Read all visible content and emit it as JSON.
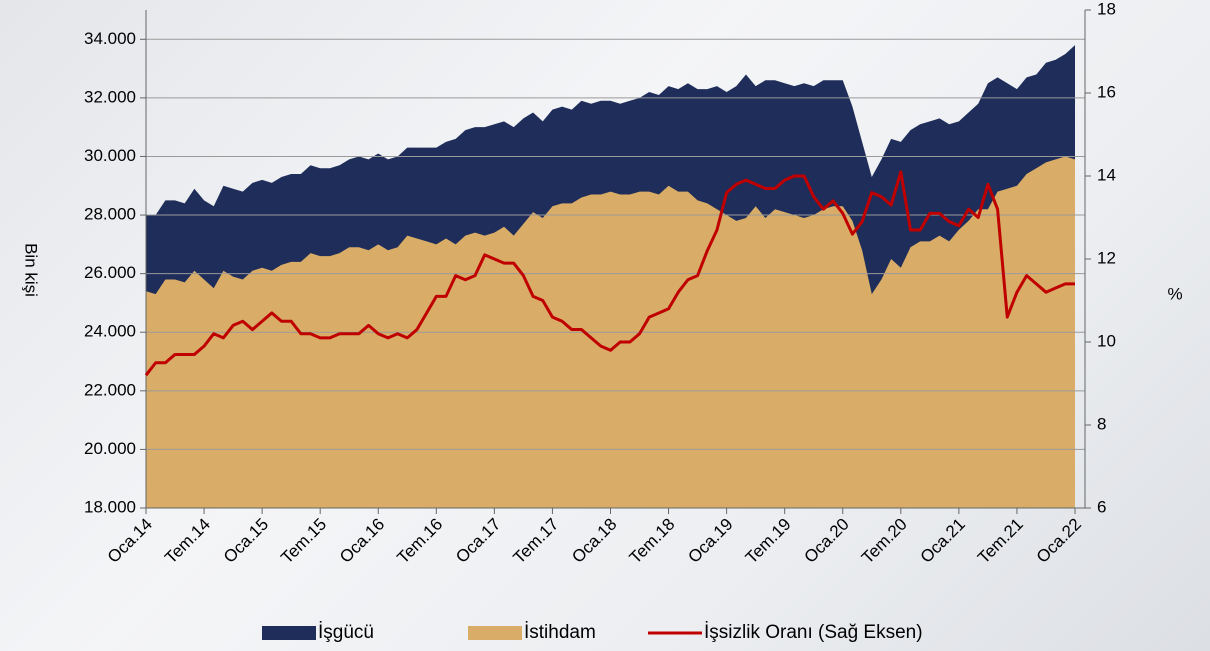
{
  "chart_data": {
    "type": "area-line",
    "categories": [
      "Oca.14",
      null,
      null,
      null,
      null,
      null,
      "Tem.14",
      null,
      null,
      null,
      null,
      null,
      "Oca.15",
      null,
      null,
      null,
      null,
      null,
      "Tem.15",
      null,
      null,
      null,
      null,
      null,
      "Oca.16",
      null,
      null,
      null,
      null,
      null,
      "Tem.16",
      null,
      null,
      null,
      null,
      null,
      "Oca.17",
      null,
      null,
      null,
      null,
      null,
      "Tem.17",
      null,
      null,
      null,
      null,
      null,
      "Oca.18",
      null,
      null,
      null,
      null,
      null,
      "Tem.18",
      null,
      null,
      null,
      null,
      null,
      "Oca.19",
      null,
      null,
      null,
      null,
      null,
      "Tem.19",
      null,
      null,
      null,
      null,
      null,
      "Oca.20",
      null,
      null,
      null,
      null,
      null,
      "Tem.20",
      null,
      null,
      null,
      null,
      null,
      "Oca.21",
      null,
      null,
      null,
      null,
      null,
      "Tem.21",
      null,
      null,
      null,
      null,
      null,
      "Oca.22"
    ],
    "ylabel": "Bin kişi",
    "y2label": "%",
    "ylim": [
      18000,
      35000
    ],
    "yticks": [
      {
        "value": 18000,
        "label": "18.000"
      },
      {
        "value": 20000,
        "label": "20.000"
      },
      {
        "value": 22000,
        "label": "22.000"
      },
      {
        "value": 24000,
        "label": "24.000"
      },
      {
        "value": 26000,
        "label": "26.000"
      },
      {
        "value": 28000,
        "label": "28.000"
      },
      {
        "value": 30000,
        "label": "30.000"
      },
      {
        "value": 32000,
        "label": "32.000"
      },
      {
        "value": 34000,
        "label": "34.000"
      }
    ],
    "y2lim": [
      6,
      18
    ],
    "y2ticks": [
      6,
      8,
      10,
      12,
      14,
      16,
      18
    ],
    "grid": true,
    "series": [
      {
        "name": "İşgücü",
        "kind": "area",
        "color": "#1f2d5a",
        "values": [
          28000,
          28000,
          28500,
          28500,
          28400,
          28900,
          28500,
          28300,
          29000,
          28900,
          28800,
          29100,
          29200,
          29100,
          29300,
          29400,
          29400,
          29700,
          29600,
          29600,
          29700,
          29900,
          30000,
          29900,
          30100,
          29900,
          30000,
          30300,
          30300,
          30300,
          30300,
          30500,
          30600,
          30900,
          31000,
          31000,
          31100,
          31200,
          31000,
          31300,
          31500,
          31200,
          31600,
          31700,
          31600,
          31900,
          31800,
          31900,
          31900,
          31800,
          31900,
          32000,
          32200,
          32100,
          32400,
          32300,
          32500,
          32300,
          32300,
          32400,
          32200,
          32400,
          32800,
          32400,
          32600,
          32600,
          32500,
          32400,
          32500,
          32400,
          32600,
          32600,
          32600,
          31700,
          30500,
          29300,
          29900,
          30600,
          30500,
          30900,
          31100,
          31200,
          31300,
          31100,
          31200,
          31500,
          31800,
          32500,
          32700,
          32500,
          32300,
          32700,
          32800,
          33200,
          33300,
          33500,
          33800
        ]
      },
      {
        "name": "İstihdam",
        "kind": "area",
        "color": "#d9ad67",
        "values": [
          25400,
          25300,
          25800,
          25800,
          25700,
          26100,
          25800,
          25500,
          26100,
          25900,
          25800,
          26100,
          26200,
          26100,
          26300,
          26400,
          26400,
          26700,
          26600,
          26600,
          26700,
          26900,
          26900,
          26800,
          27000,
          26800,
          26900,
          27300,
          27200,
          27100,
          27000,
          27200,
          27000,
          27300,
          27400,
          27300,
          27400,
          27600,
          27300,
          27700,
          28100,
          27900,
          28300,
          28400,
          28400,
          28600,
          28700,
          28700,
          28800,
          28700,
          28700,
          28800,
          28800,
          28700,
          29000,
          28800,
          28800,
          28500,
          28400,
          28200,
          28000,
          27800,
          27900,
          28300,
          27900,
          28200,
          28100,
          28000,
          27900,
          28000,
          28200,
          28300,
          28300,
          27800,
          26800,
          25300,
          25800,
          26500,
          26200,
          26900,
          27100,
          27100,
          27300,
          27100,
          27500,
          27800,
          28200,
          28200,
          28800,
          28900,
          29000,
          29400,
          29600,
          29800,
          29900,
          30000,
          29900
        ]
      },
      {
        "name": "İşsizlik Oranı (Sağ Eksen)",
        "kind": "line",
        "axis": "y2",
        "color": "#c00000",
        "values": [
          9.2,
          9.5,
          9.5,
          9.7,
          9.7,
          9.7,
          9.9,
          10.2,
          10.1,
          10.4,
          10.5,
          10.3,
          10.5,
          10.7,
          10.5,
          10.5,
          10.2,
          10.2,
          10.1,
          10.1,
          10.2,
          10.2,
          10.2,
          10.4,
          10.2,
          10.1,
          10.2,
          10.1,
          10.3,
          10.7,
          11.1,
          11.1,
          11.6,
          11.5,
          11.6,
          12.1,
          12.0,
          11.9,
          11.9,
          11.6,
          11.1,
          11.0,
          10.6,
          10.5,
          10.3,
          10.3,
          10.1,
          9.9,
          9.8,
          10.0,
          10.0,
          10.2,
          10.6,
          10.7,
          10.8,
          11.2,
          11.5,
          11.6,
          12.2,
          12.7,
          13.6,
          13.8,
          13.9,
          13.8,
          13.7,
          13.7,
          13.9,
          14.0,
          14.0,
          13.5,
          13.2,
          13.4,
          13.1,
          12.6,
          12.9,
          13.6,
          13.5,
          13.3,
          14.1,
          12.7,
          12.7,
          13.1,
          13.1,
          12.9,
          12.8,
          13.2,
          13.0,
          13.8,
          13.2,
          10.6,
          11.2,
          11.6,
          11.4,
          11.2,
          11.3,
          11.4,
          11.4
        ]
      }
    ]
  }
}
